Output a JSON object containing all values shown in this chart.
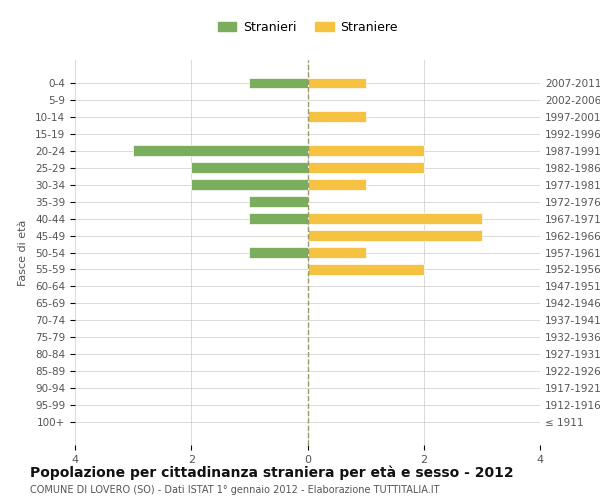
{
  "age_groups": [
    "100+",
    "95-99",
    "90-94",
    "85-89",
    "80-84",
    "75-79",
    "70-74",
    "65-69",
    "60-64",
    "55-59",
    "50-54",
    "45-49",
    "40-44",
    "35-39",
    "30-34",
    "25-29",
    "20-24",
    "15-19",
    "10-14",
    "5-9",
    "0-4"
  ],
  "birth_years": [
    "≤ 1911",
    "1912-1916",
    "1917-1921",
    "1922-1926",
    "1927-1931",
    "1932-1936",
    "1937-1941",
    "1942-1946",
    "1947-1951",
    "1952-1956",
    "1957-1961",
    "1962-1966",
    "1967-1971",
    "1972-1976",
    "1977-1981",
    "1982-1986",
    "1987-1991",
    "1992-1996",
    "1997-2001",
    "2002-2006",
    "2007-2011"
  ],
  "males": [
    0,
    0,
    0,
    0,
    0,
    0,
    0,
    0,
    0,
    0,
    1,
    0,
    1,
    1,
    2,
    2,
    3,
    0,
    0,
    0,
    1
  ],
  "females": [
    0,
    0,
    0,
    0,
    0,
    0,
    0,
    0,
    0,
    2,
    1,
    3,
    3,
    0,
    1,
    2,
    2,
    0,
    1,
    0,
    1
  ],
  "male_color": "#7aad5c",
  "female_color": "#f5c242",
  "title": "Popolazione per cittadinanza straniera per età e sesso - 2012",
  "subtitle": "COMUNE DI LOVERO (SO) - Dati ISTAT 1° gennaio 2012 - Elaborazione TUTTITALIA.IT",
  "ylabel_left": "Fasce di età",
  "legend_male": "Stranieri",
  "legend_female": "Straniere",
  "xlim": 4,
  "background_color": "#ffffff",
  "grid_color": "#cccccc"
}
